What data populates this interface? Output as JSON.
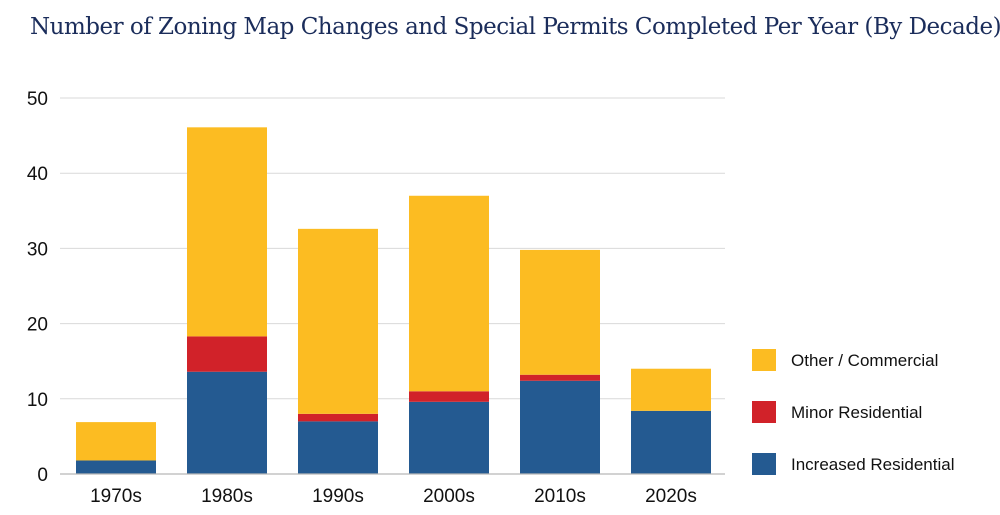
{
  "chart_data": {
    "type": "bar",
    "stacked": true,
    "title": "Number of  Zoning Map Changes and Special Permits Completed Per Year (By Decade)",
    "xlabel": "",
    "ylabel": "",
    "categories": [
      "1970s",
      "1980s",
      "1990s",
      "2000s",
      "2010s",
      "2020s"
    ],
    "ylim": [
      0,
      50
    ],
    "yticks": [
      0,
      10,
      20,
      30,
      40,
      50
    ],
    "grid": true,
    "legend_position": "right",
    "series": [
      {
        "name": "Increased Residential",
        "color": "#245a91",
        "values": [
          1.8,
          13.6,
          7.0,
          9.6,
          12.4,
          8.4
        ]
      },
      {
        "name": "Minor Residential",
        "color": "#d12229",
        "values": [
          0,
          4.7,
          1.0,
          1.4,
          0.8,
          0
        ]
      },
      {
        "name": "Other / Commercial",
        "color": "#fcbc22",
        "values": [
          5.1,
          27.8,
          24.6,
          26.0,
          16.6,
          5.6
        ]
      }
    ]
  }
}
